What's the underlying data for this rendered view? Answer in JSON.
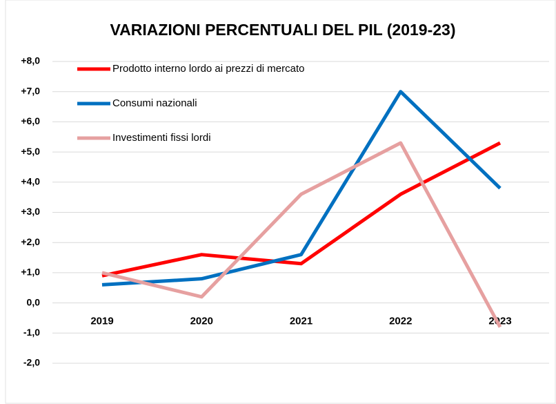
{
  "chart_data": {
    "type": "line",
    "title": "VARIAZIONI PERCENTUALI DEL PIL (2019-23)",
    "categories": [
      "2019",
      "2020",
      "2021",
      "2022",
      "2023"
    ],
    "series": [
      {
        "name": "Prodotto interno lordo ai prezzi di mercato",
        "color": "#ff0000",
        "values": [
          0.9,
          1.6,
          1.3,
          3.6,
          5.3
        ]
      },
      {
        "name": "Consumi nazionali",
        "color": "#0070c0",
        "values": [
          0.6,
          0.8,
          1.6,
          7.0,
          3.8
        ]
      },
      {
        "name": "Investimenti fissi lordi",
        "color": "#e6a0a0",
        "values": [
          1.0,
          0.2,
          3.6,
          5.3,
          -0.8
        ]
      }
    ],
    "ylim": [
      -2,
      8
    ],
    "yticks": [
      {
        "value": -2,
        "label": "-2,0"
      },
      {
        "value": -1,
        "label": "-1,0"
      },
      {
        "value": 0,
        "label": "0,0"
      },
      {
        "value": 1,
        "label": "+1,0"
      },
      {
        "value": 2,
        "label": "+2,0"
      },
      {
        "value": 3,
        "label": "+3,0"
      },
      {
        "value": 4,
        "label": "+4,0"
      },
      {
        "value": 5,
        "label": "+5,0"
      },
      {
        "value": 6,
        "label": "+6,0"
      },
      {
        "value": 7,
        "label": "+7,0"
      },
      {
        "value": 8,
        "label": "+8,0"
      }
    ],
    "grid": true,
    "legend": "upper left"
  }
}
